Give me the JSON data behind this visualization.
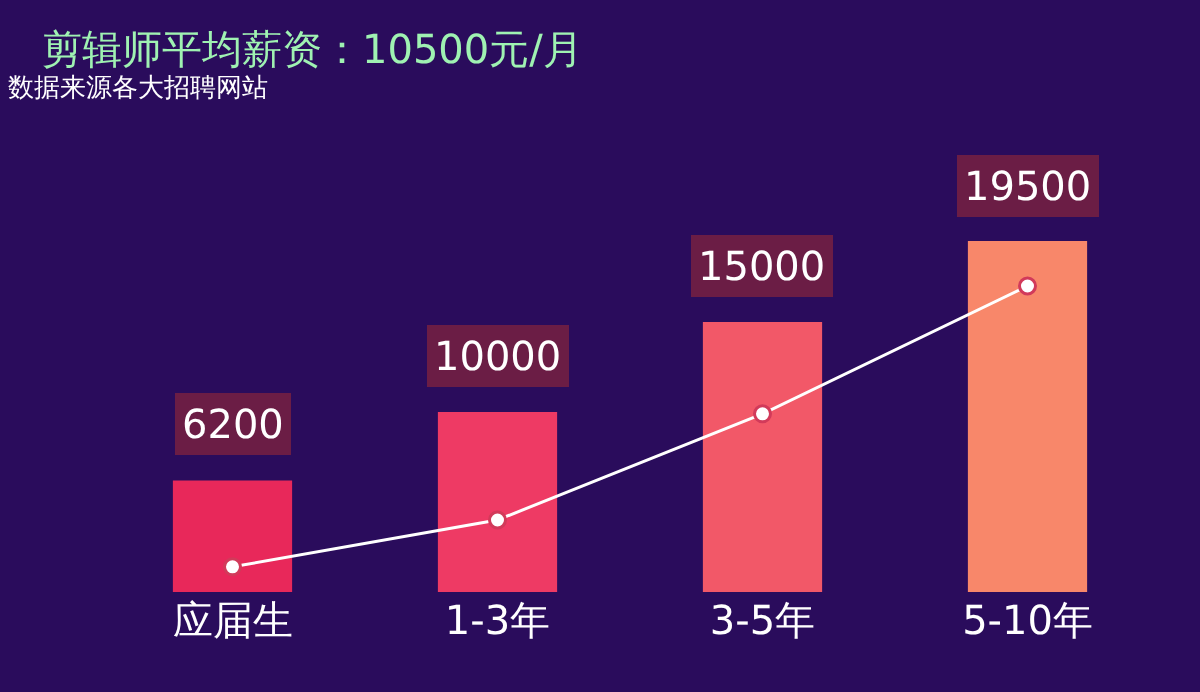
{
  "chart_data": {
    "type": "bar",
    "title": "剪辑师平均薪资：10500元/月",
    "subtitle": "数据来源各大招聘网站",
    "categories": [
      "应届生",
      "1-3年",
      "3-5年",
      "5-10年"
    ],
    "series": [
      {
        "values": [
          6200,
          10000,
          15000,
          19500
        ],
        "colors": [
          "#e8285a",
          "#ee3a64",
          "#f25868",
          "#f8876a"
        ],
        "value_labels": [
          "6200",
          "10000",
          "15000",
          "19500"
        ]
      },
      {
        "type": "line",
        "color": "#ffffff",
        "values": [
          1400,
          4000,
          9900,
          17000
        ]
      }
    ],
    "ylim": [
      0,
      24000
    ],
    "marker": "circle",
    "line_style": "solid",
    "legend": false,
    "tick_labels": "x"
  }
}
